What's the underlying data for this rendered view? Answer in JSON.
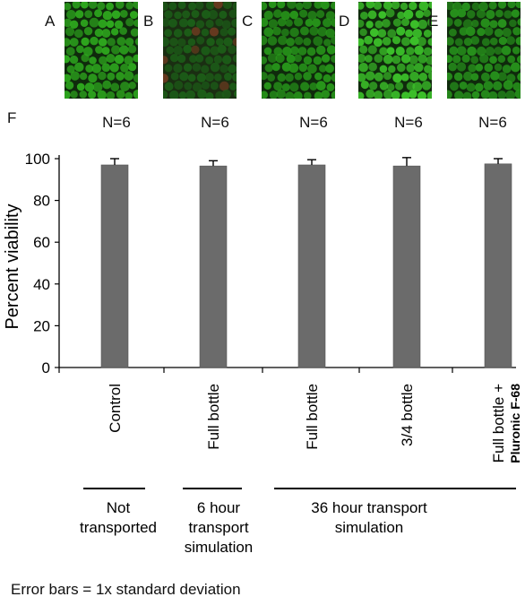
{
  "panels": [
    {
      "letter": "A",
      "tone": "#2ea81e"
    },
    {
      "letter": "B",
      "tone": "#1c5f18"
    },
    {
      "letter": "C",
      "tone": "#27951a"
    },
    {
      "letter": "D",
      "tone": "#3cc22a"
    },
    {
      "letter": "E",
      "tone": "#27921c"
    }
  ],
  "panel_f_letter": "F",
  "chart_data": {
    "type": "bar",
    "categories": [
      "Control",
      "Full bottle",
      "Full bottle",
      "3/4 bottle",
      "Full bottle +"
    ],
    "category_sublabels": [
      "",
      "",
      "",
      "",
      "Pluronic F-68"
    ],
    "values": [
      97,
      96.5,
      97,
      96.5,
      97.5
    ],
    "errors": [
      3,
      2.5,
      2.5,
      4,
      2.5
    ],
    "n_labels": [
      "N=6",
      "N=6",
      "N=6",
      "N=6",
      "N=6"
    ],
    "ylabel": "Percent viability",
    "ylim": [
      0,
      100
    ],
    "yticks": [
      0,
      20,
      40,
      60,
      80,
      100
    ],
    "bar_color": "#6b6b6b",
    "groups": [
      {
        "lines": [
          "Not",
          "transported"
        ],
        "span": [
          0,
          0
        ]
      },
      {
        "lines": [
          "6 hour",
          "transport",
          "simulation"
        ],
        "span": [
          1,
          1
        ]
      },
      {
        "lines": [
          "36 hour transport",
          "simulation"
        ],
        "span": [
          2,
          4
        ]
      }
    ]
  },
  "footnote": "Error bars = 1x standard deviation"
}
